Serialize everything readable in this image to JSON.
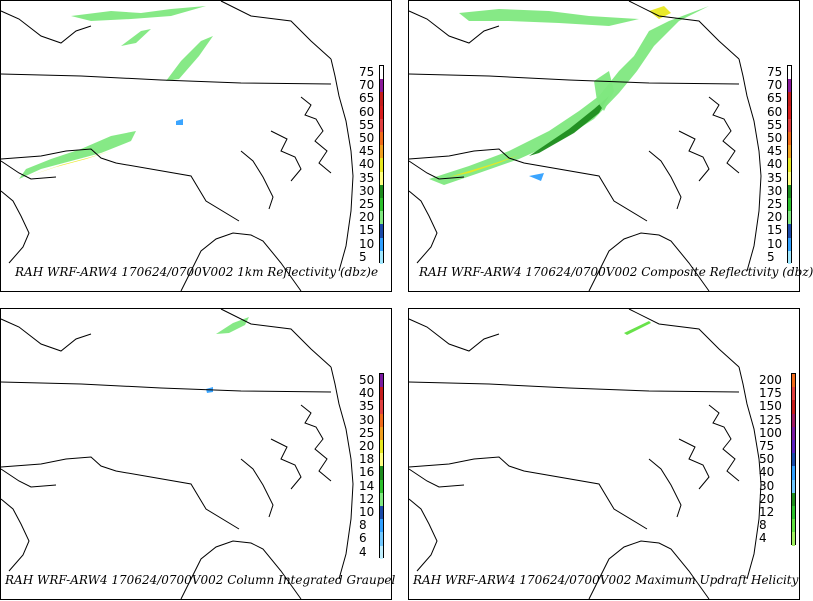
{
  "panels": [
    {
      "id": "p1",
      "caption": "RAH WRF-ARW4 170624/0700V002  1km Reflectivity (dbz)e",
      "legend": {
        "labels": [
          "75",
          "70",
          "65",
          "60",
          "55",
          "50",
          "45",
          "40",
          "35",
          "30",
          "25",
          "20",
          "15",
          "10",
          "5"
        ],
        "colors": [
          "#ffffff",
          "#8b1a9a",
          "#c41c1c",
          "#d81c1c",
          "#e04040",
          "#f06a1a",
          "#f0a020",
          "#e8e820",
          "#ffff80",
          "#1e8c1e",
          "#2cc02c",
          "#80e880",
          "#1a4aa8",
          "#30a0ff",
          "#a0e8ff"
        ]
      },
      "echo": "low"
    },
    {
      "id": "p2",
      "caption": "RAH WRF-ARW4 170624/0700V002  Composite Reflectivity (dbz)",
      "legend": {
        "labels": [
          "75",
          "70",
          "65",
          "60",
          "55",
          "50",
          "45",
          "40",
          "35",
          "30",
          "25",
          "20",
          "15",
          "10",
          "5"
        ],
        "colors": [
          "#ffffff",
          "#8b1a9a",
          "#c41c1c",
          "#d81c1c",
          "#e04040",
          "#f06a1a",
          "#f0a020",
          "#e8e820",
          "#ffff80",
          "#1e8c1e",
          "#2cc02c",
          "#80e880",
          "#1a4aa8",
          "#30a0ff",
          "#a0e8ff"
        ]
      },
      "echo": "composite"
    },
    {
      "id": "p3",
      "caption": "RAH WRF-ARW4 170624/0700V002  Column Integrated Graupel",
      "legend": {
        "labels": [
          "50",
          "40",
          "35",
          "30",
          "25",
          "20",
          "18",
          "16",
          "14",
          "12",
          "10",
          "8",
          "6",
          "4"
        ],
        "colors": [
          "#7a1aa0",
          "#c41c1c",
          "#e04040",
          "#f06a1a",
          "#f0a020",
          "#e8e820",
          "#ffff80",
          "#1e8c1e",
          "#2cc02c",
          "#80e880",
          "#1a4aa8",
          "#30a0ff",
          "#70c8ff",
          "#c0f0ff"
        ]
      },
      "echo": "graupel"
    },
    {
      "id": "p4",
      "caption": "RAH WRF-ARW4 170624/0700V002  Maximum Updraft Helicity",
      "legend": {
        "labels": [
          "200",
          "175",
          "150",
          "125",
          "100",
          "75",
          "50",
          "40",
          "30",
          "20",
          "12",
          "8",
          "4"
        ],
        "colors": [
          "#f06a1a",
          "#e04040",
          "#c41c1c",
          "#a01c60",
          "#7a1aa0",
          "#5a20c0",
          "#1a4aa8",
          "#30a0ff",
          "#70c8ff",
          "#1e8c1e",
          "#2cc02c",
          "#60e040",
          "#a0f060"
        ]
      },
      "echo": "helicity"
    }
  ]
}
